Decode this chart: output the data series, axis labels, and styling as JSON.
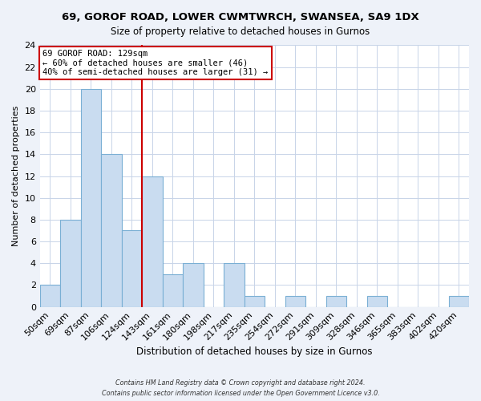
{
  "title": "69, GOROF ROAD, LOWER CWMTWRCH, SWANSEA, SA9 1DX",
  "subtitle": "Size of property relative to detached houses in Gurnos",
  "xlabel": "Distribution of detached houses by size in Gurnos",
  "ylabel": "Number of detached properties",
  "bar_labels": [
    "50sqm",
    "69sqm",
    "87sqm",
    "106sqm",
    "124sqm",
    "143sqm",
    "161sqm",
    "180sqm",
    "198sqm",
    "217sqm",
    "235sqm",
    "254sqm",
    "272sqm",
    "291sqm",
    "309sqm",
    "328sqm",
    "346sqm",
    "365sqm",
    "383sqm",
    "402sqm",
    "420sqm"
  ],
  "bar_values": [
    2,
    8,
    20,
    14,
    7,
    12,
    3,
    4,
    0,
    4,
    1,
    0,
    1,
    0,
    1,
    0,
    1,
    0,
    0,
    0,
    1
  ],
  "bar_color": "#c9dcf0",
  "bar_edge_color": "#7aafd4",
  "vline_color": "#cc0000",
  "annotation_title": "69 GOROF ROAD: 129sqm",
  "annotation_line1": "← 60% of detached houses are smaller (46)",
  "annotation_line2": "40% of semi-detached houses are larger (31) →",
  "annotation_box_color": "#ffffff",
  "annotation_box_edge": "#cc0000",
  "ylim": [
    0,
    24
  ],
  "yticks": [
    0,
    2,
    4,
    6,
    8,
    10,
    12,
    14,
    16,
    18,
    20,
    22,
    24
  ],
  "footer1": "Contains HM Land Registry data © Crown copyright and database right 2024.",
  "footer2": "Contains public sector information licensed under the Open Government Licence v3.0.",
  "background_color": "#eef2f9",
  "plot_bg_color": "#ffffff",
  "grid_color": "#c8d4e8"
}
